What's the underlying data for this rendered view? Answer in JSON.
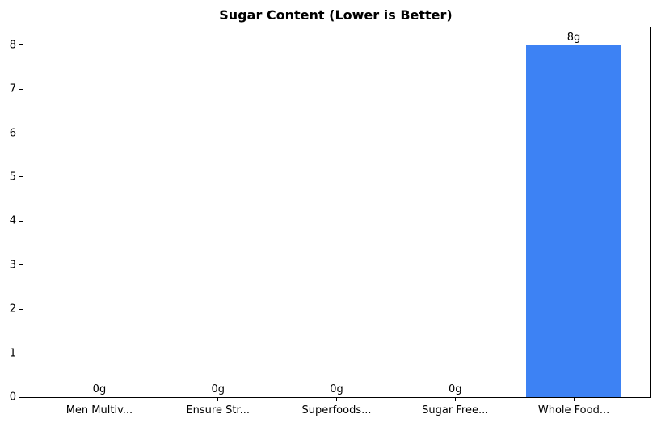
{
  "chart_data": {
    "type": "bar",
    "title": "Sugar Content (Lower is Better)",
    "categories": [
      "Men Multiv...",
      "Ensure Str...",
      "Superfoods...",
      "Sugar Free...",
      "Whole Food..."
    ],
    "values": [
      0,
      0,
      0,
      0,
      8
    ],
    "bar_labels": [
      "0g",
      "0g",
      "0g",
      "0g",
      "8g"
    ],
    "xlabel": "",
    "ylabel": "",
    "yticks": [
      0,
      1,
      2,
      3,
      4,
      5,
      6,
      7,
      8
    ],
    "ylim": [
      0,
      8.4
    ],
    "bar_color": "#3D82F4",
    "grid": false,
    "legend_position": "none"
  }
}
